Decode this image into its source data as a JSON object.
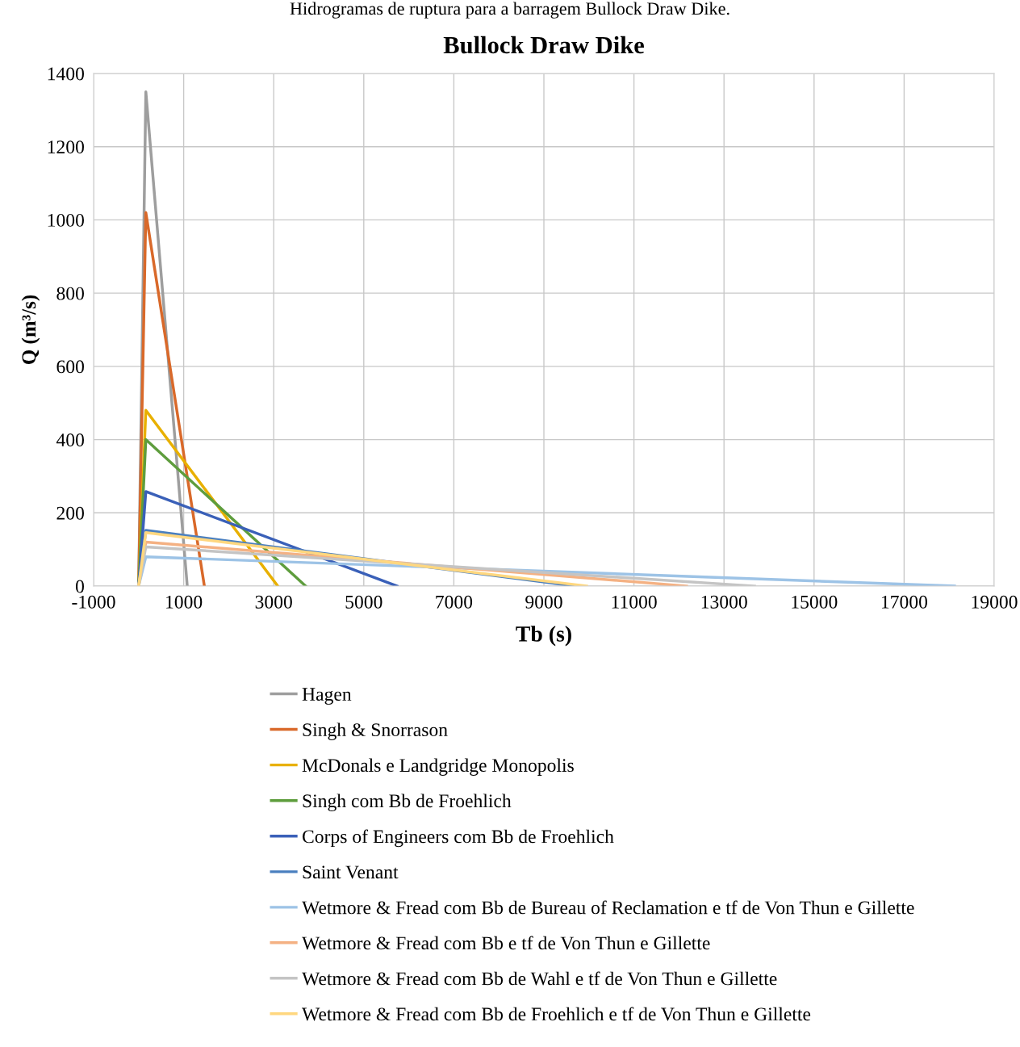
{
  "chart_data": {
    "type": "line",
    "title": "Bullock Draw Dike",
    "xlabel": "Tb (s)",
    "ylabel": "Q (m³/s)",
    "annotations": [
      "Hidrogramas de ruptura para a barragem Bullock Draw Dike."
    ],
    "xlim": [
      -1000,
      19000
    ],
    "xticks": [
      -1000,
      1000,
      3000,
      5000,
      7000,
      9000,
      11000,
      13000,
      15000,
      17000,
      19000
    ],
    "ylim": [
      0,
      1400
    ],
    "yticks": [
      0,
      200,
      400,
      600,
      800,
      1000,
      1200,
      1400
    ],
    "grid": true,
    "legend": "bottom",
    "marker": "none",
    "line_style": "solid",
    "series": [
      {
        "name": "Hagen",
        "color": "#9e9e9e",
        "x": [
          0,
          160,
          1080
        ],
        "values": [
          0,
          1350,
          0
        ]
      },
      {
        "name": "Singh & Snorrason",
        "color": "#d9692a",
        "x": [
          0,
          160,
          1460
        ],
        "values": [
          0,
          1020,
          0
        ]
      },
      {
        "name": "McDonals e Landgridge Monopolis",
        "color": "#e8b000",
        "x": [
          0,
          160,
          3090
        ],
        "values": [
          0,
          480,
          0
        ]
      },
      {
        "name": "Singh com Bb de Froehlich",
        "color": "#5e9d3d",
        "x": [
          0,
          160,
          3710
        ],
        "values": [
          0,
          400,
          0
        ]
      },
      {
        "name": "Corps of Engineers com Bb de Froehlich",
        "color": "#3a60b8",
        "x": [
          0,
          160,
          5740
        ],
        "values": [
          0,
          258,
          0
        ]
      },
      {
        "name": "Saint Venant",
        "color": "#4a7fbf",
        "x": [
          0,
          160,
          9700
        ],
        "values": [
          0,
          152,
          0
        ]
      },
      {
        "name": "Wetmore & Fread com Bb de Bureau of Reclamation e tf de Von Thun e Gillette",
        "color": "#9dc3e6",
        "x": [
          0,
          160,
          18120
        ],
        "values": [
          0,
          80,
          0
        ]
      },
      {
        "name": "Wetmore & Fread com Bb e tf de Von Thun e Gillette",
        "color": "#f4b183",
        "x": [
          0,
          160,
          12170
        ],
        "values": [
          0,
          120,
          0
        ]
      },
      {
        "name": "Wetmore & Fread com Bb de Wahl e tf de Von Thun e Gillette",
        "color": "#c4c4c4",
        "x": [
          0,
          160,
          13680
        ],
        "values": [
          0,
          107,
          0
        ]
      },
      {
        "name": "Wetmore & Fread com Bb de Froehlich e tf de Von Thun e Gillette",
        "color": "#ffd77f",
        "x": [
          0,
          160,
          9950
        ],
        "values": [
          0,
          146,
          0
        ]
      }
    ]
  }
}
